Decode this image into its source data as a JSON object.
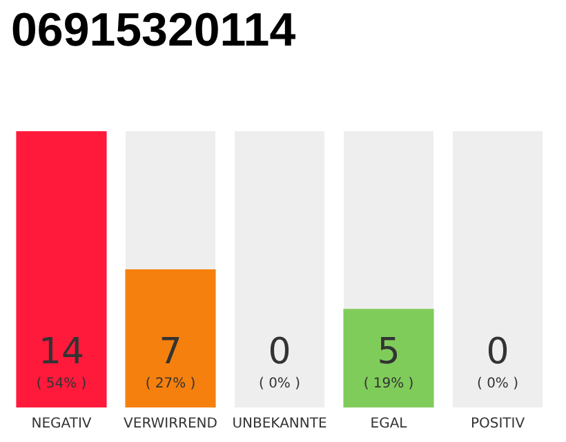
{
  "chart_data": {
    "type": "bar",
    "title": "06915320114",
    "categories": [
      "NEGATIV",
      "VERWIRREND",
      "UNBEKANNTE",
      "EGAL",
      "POSITIV"
    ],
    "values": [
      14,
      7,
      0,
      5,
      0
    ],
    "colors": [
      "#ff1a3c",
      "#f5800d",
      "#cccccc",
      "#80cc5a",
      "#cccccc"
    ],
    "value_labels": [
      "14\n( 54% )",
      "7\n( 27% )",
      "0\n( 0% )",
      "5\n( 19% )",
      "0\n( 0% )"
    ]
  }
}
